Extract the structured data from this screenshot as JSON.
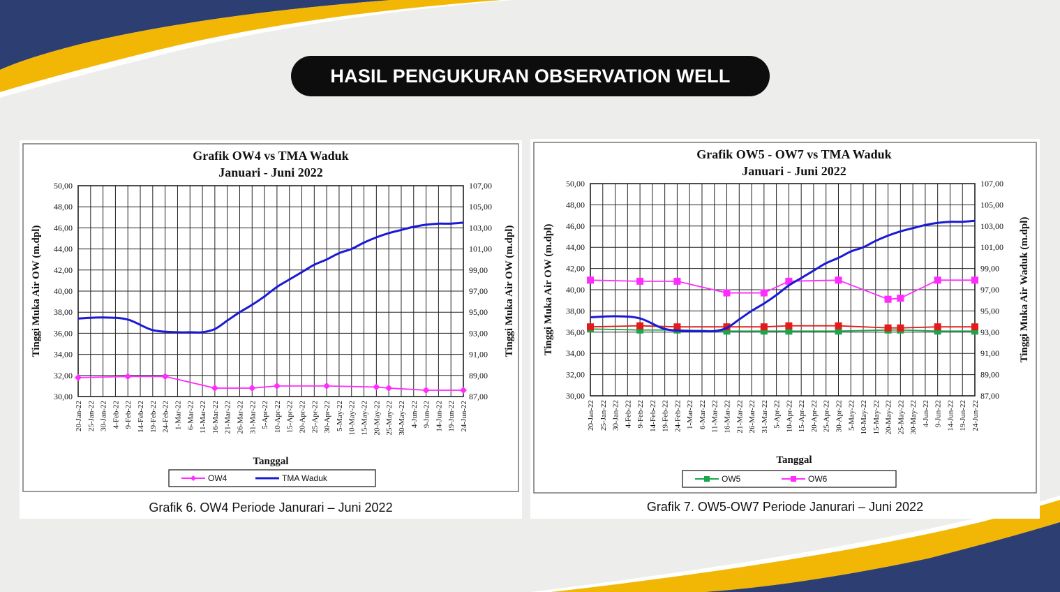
{
  "slide": {
    "title": "HASIL PENGUKURAN OBSERVATION WELL",
    "colors": {
      "navy": "#2d3e73",
      "gold": "#f2b705",
      "background": "#ededeb"
    }
  },
  "chart_data": [
    {
      "type": "line",
      "title": "Grafik OW4 vs TMA Waduk",
      "subtitle": "Januari - Juni 2022",
      "xlabel": "Tanggal",
      "ylabel": "Tinggi Muka Air OW (m.dpl)",
      "y2label": "Tinggi Muka Air OW (m.dpl)",
      "categories": [
        "20-Jan-22",
        "25-Jan-22",
        "30-Jan-22",
        "4-Feb-22",
        "9-Feb-22",
        "14-Feb-22",
        "19-Feb-22",
        "24-Feb-22",
        "1-Mar-22",
        "6-Mar-22",
        "11-Mar-22",
        "16-Mar-22",
        "21-Mar-22",
        "26-Mar-22",
        "31-Mar-22",
        "5-Apr-22",
        "10-Apr-22",
        "15-Apr-22",
        "20-Apr-22",
        "25-Apr-22",
        "30-Apr-22",
        "5-May-22",
        "10-May-22",
        "15-May-22",
        "20-May-22",
        "25-May-22",
        "30-May-22",
        "4-Jun-22",
        "9-Jun-22",
        "14-Jun-22",
        "19-Jun-22",
        "24-Jun-22"
      ],
      "ylim": [
        30,
        50
      ],
      "yticks": [
        "30,00",
        "32,00",
        "34,00",
        "36,00",
        "38,00",
        "40,00",
        "42,00",
        "44,00",
        "46,00",
        "48,00",
        "50,00"
      ],
      "y2lim": [
        87,
        107
      ],
      "y2ticks": [
        "87,00",
        "89,00",
        "91,00",
        "93,00",
        "95,00",
        "97,00",
        "99,00",
        "101,00",
        "103,00",
        "105,00",
        "107,00"
      ],
      "grid": true,
      "legend_position": "bottom",
      "series": [
        {
          "name": "OW4",
          "axis": "left",
          "color": "#ff2bff",
          "marker": "diamond",
          "points": [
            [
              0,
              31.8
            ],
            [
              4,
              31.9
            ],
            [
              7,
              31.9
            ],
            [
              11,
              30.8
            ],
            [
              14,
              30.8
            ],
            [
              16,
              31.0
            ],
            [
              20,
              31.0
            ],
            [
              24,
              30.9
            ],
            [
              25,
              30.8
            ],
            [
              28,
              30.6
            ],
            [
              31,
              30.6
            ]
          ]
        },
        {
          "name": "TMA Waduk",
          "axis": "right",
          "color": "#1a1ad6",
          "marker": "none",
          "points": [
            [
              0,
              94.4
            ],
            [
              2,
              94.5
            ],
            [
              4,
              94.3
            ],
            [
              6,
              93.3
            ],
            [
              8,
              93.1
            ],
            [
              9,
              93.1
            ],
            [
              10,
              93.1
            ],
            [
              11,
              93.4
            ],
            [
              12,
              94.2
            ],
            [
              13,
              95.0
            ],
            [
              14,
              95.7
            ],
            [
              15,
              96.5
            ],
            [
              16,
              97.4
            ],
            [
              17,
              98.1
            ],
            [
              18,
              98.8
            ],
            [
              19,
              99.5
            ],
            [
              20,
              100.0
            ],
            [
              21,
              100.6
            ],
            [
              22,
              101.0
            ],
            [
              23,
              101.6
            ],
            [
              24,
              102.1
            ],
            [
              25,
              102.5
            ],
            [
              26,
              102.8
            ],
            [
              27,
              103.1
            ],
            [
              28,
              103.3
            ],
            [
              29,
              103.4
            ],
            [
              30,
              103.4
            ],
            [
              31,
              103.5
            ]
          ]
        }
      ]
    },
    {
      "type": "line",
      "title": "Grafik OW5 - OW7 vs TMA Waduk",
      "subtitle": "Januari - Juni 2022",
      "xlabel": "Tanggal",
      "ylabel": "Tinggi Muka Air OW (m.dpl)",
      "y2label": "Tinggi Muka Air Waduk (m.dpl)",
      "categories": [
        "20-Jan-22",
        "25-Jan-22",
        "30-Jan-22",
        "4-Feb-22",
        "9-Feb-22",
        "14-Feb-22",
        "19-Feb-22",
        "24-Feb-22",
        "1-Mar-22",
        "6-Mar-22",
        "11-Mar-22",
        "16-Mar-22",
        "21-Mar-22",
        "26-Mar-22",
        "31-Mar-22",
        "5-Apr-22",
        "10-Apr-22",
        "15-Apr-22",
        "20-Apr-22",
        "25-Apr-22",
        "30-Apr-22",
        "5-May-22",
        "10-May-22",
        "15-May-22",
        "20-May-22",
        "25-May-22",
        "30-May-22",
        "4-Jun-22",
        "9-Jun-22",
        "14-Jun-22",
        "19-Jun-22",
        "24-Jun-22"
      ],
      "ylim": [
        30,
        50
      ],
      "yticks": [
        "30,00",
        "32,00",
        "34,00",
        "36,00",
        "38,00",
        "40,00",
        "42,00",
        "44,00",
        "46,00",
        "48,00",
        "50,00"
      ],
      "y2lim": [
        87,
        107
      ],
      "y2ticks": [
        "87,00",
        "89,00",
        "91,00",
        "93,00",
        "95,00",
        "97,00",
        "99,00",
        "101,00",
        "103,00",
        "105,00",
        "107,00"
      ],
      "grid": true,
      "legend_position": "bottom",
      "series": [
        {
          "name": "OW5",
          "axis": "left",
          "color": "#1aa64a",
          "marker": "square",
          "points": [
            [
              0,
              36.3
            ],
            [
              4,
              36.2
            ],
            [
              7,
              36.2
            ],
            [
              11,
              36.1
            ],
            [
              14,
              36.1
            ],
            [
              16,
              36.1
            ],
            [
              20,
              36.1
            ],
            [
              24,
              36.2
            ],
            [
              25,
              36.2
            ],
            [
              28,
              36.1
            ],
            [
              31,
              36.1
            ]
          ]
        },
        {
          "name": "OW6",
          "axis": "left",
          "color": "#ff2bff",
          "marker": "square",
          "points": [
            [
              0,
              40.9
            ],
            [
              4,
              40.8
            ],
            [
              7,
              40.8
            ],
            [
              11,
              39.7
            ],
            [
              14,
              39.7
            ],
            [
              16,
              40.8
            ],
            [
              20,
              40.9
            ],
            [
              24,
              39.1
            ],
            [
              25,
              39.2
            ],
            [
              28,
              40.9
            ],
            [
              31,
              40.9
            ]
          ]
        },
        {
          "name": "",
          "axis": "left",
          "color": "#e21b1b",
          "marker": "square",
          "in_legend": false,
          "points": [
            [
              0,
              36.5
            ],
            [
              4,
              36.6
            ],
            [
              7,
              36.5
            ],
            [
              11,
              36.5
            ],
            [
              14,
              36.5
            ],
            [
              16,
              36.6
            ],
            [
              20,
              36.6
            ],
            [
              24,
              36.4
            ],
            [
              25,
              36.4
            ],
            [
              28,
              36.5
            ],
            [
              31,
              36.5
            ]
          ]
        },
        {
          "name": "TMA Waduk",
          "axis": "right",
          "color": "#1a1ad6",
          "marker": "none",
          "in_legend": false,
          "points": [
            [
              0,
              94.4
            ],
            [
              2,
              94.5
            ],
            [
              4,
              94.3
            ],
            [
              6,
              93.3
            ],
            [
              8,
              93.1
            ],
            [
              9,
              93.1
            ],
            [
              10,
              93.1
            ],
            [
              11,
              93.4
            ],
            [
              12,
              94.2
            ],
            [
              13,
              95.0
            ],
            [
              14,
              95.7
            ],
            [
              15,
              96.5
            ],
            [
              16,
              97.4
            ],
            [
              17,
              98.1
            ],
            [
              18,
              98.8
            ],
            [
              19,
              99.5
            ],
            [
              20,
              100.0
            ],
            [
              21,
              100.6
            ],
            [
              22,
              101.0
            ],
            [
              23,
              101.6
            ],
            [
              24,
              102.1
            ],
            [
              25,
              102.5
            ],
            [
              26,
              102.8
            ],
            [
              27,
              103.1
            ],
            [
              28,
              103.3
            ],
            [
              29,
              103.4
            ],
            [
              30,
              103.4
            ],
            [
              31,
              103.5
            ]
          ]
        }
      ]
    }
  ],
  "captions": [
    "Grafik 6. OW4 Periode Janurari – Juni 2022",
    "Grafik 7. OW5-OW7 Periode Janurari – Juni 2022"
  ]
}
